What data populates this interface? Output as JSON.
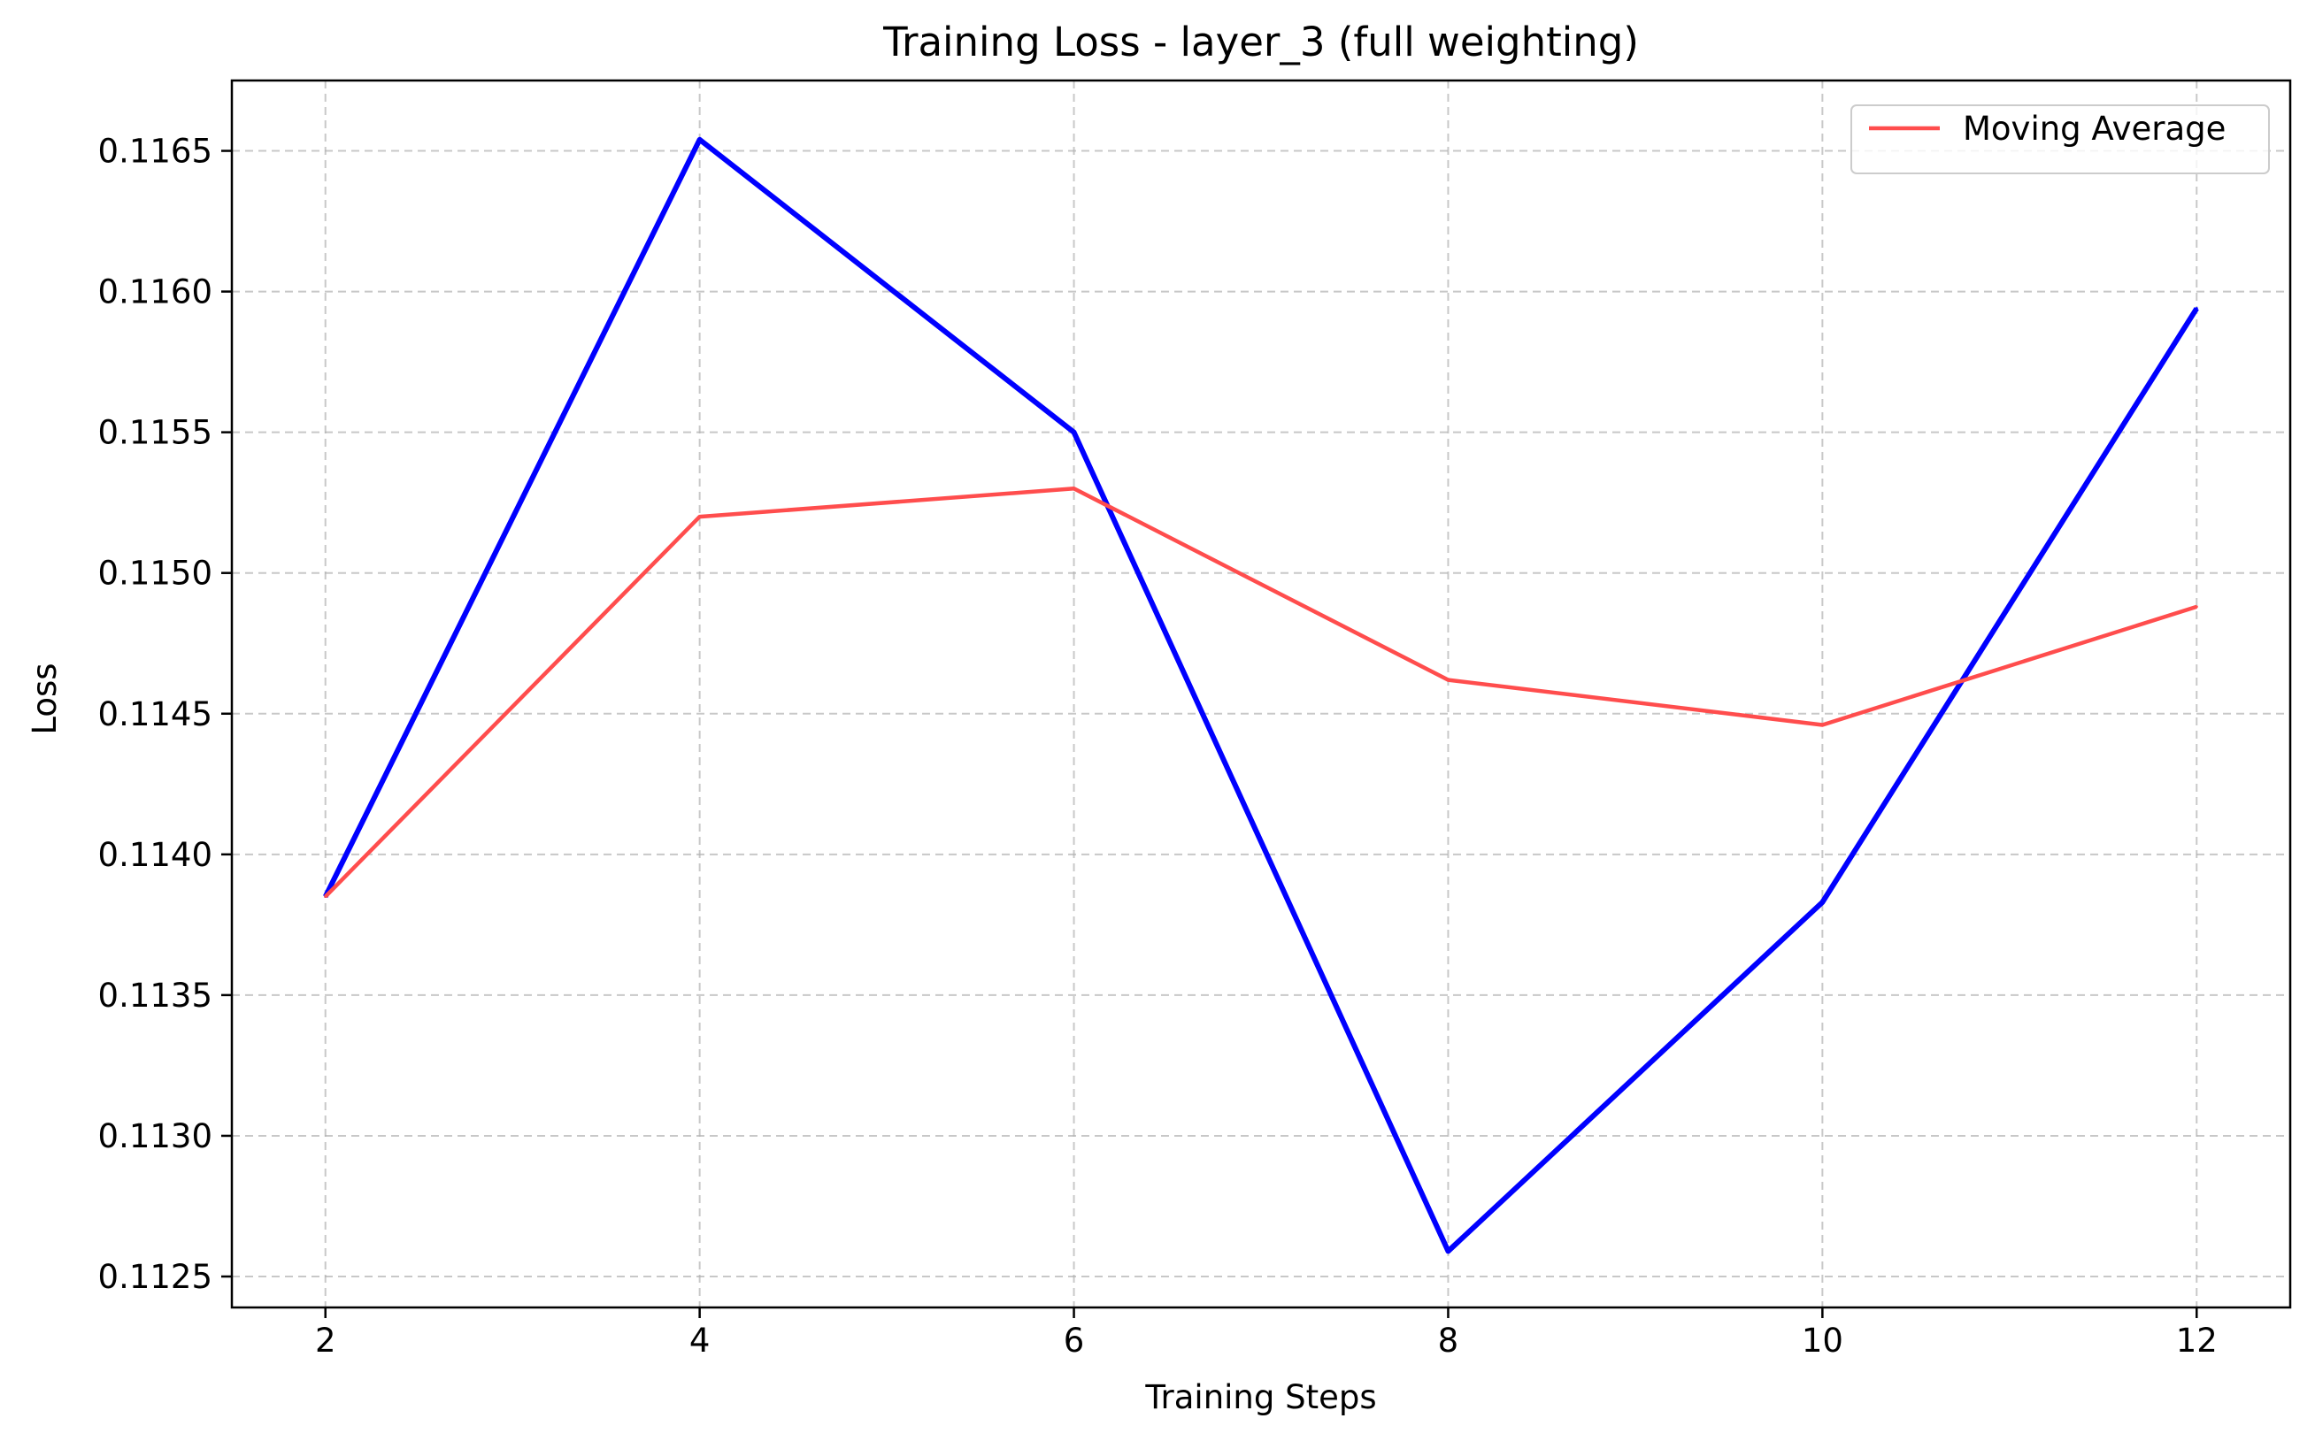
{
  "chart_data": {
    "type": "line",
    "title": "Training Loss - layer_3 (full weighting)",
    "xlabel": "Training Steps",
    "ylabel": "Loss",
    "x": [
      2,
      4,
      6,
      8,
      10,
      12
    ],
    "xlim": [
      1.5,
      12.5
    ],
    "ylim": [
      0.11239,
      0.11675
    ],
    "x_ticks": [
      2,
      4,
      6,
      8,
      10,
      12
    ],
    "x_tick_labels": [
      "2",
      "4",
      "6",
      "8",
      "10",
      "12"
    ],
    "y_ticks": [
      0.1125,
      0.113,
      0.1135,
      0.114,
      0.1145,
      0.115,
      0.1155,
      0.116,
      0.1165
    ],
    "y_tick_labels": [
      "0.1125",
      "0.1130",
      "0.1135",
      "0.1140",
      "0.1145",
      "0.1150",
      "0.1155",
      "0.1160",
      "0.1165"
    ],
    "grid": true,
    "legend_position": "top-right",
    "series": [
      {
        "values": [
          0.11385,
          0.11654,
          0.1155,
          0.11259,
          0.11383,
          0.11594
        ],
        "color": "#0000ff",
        "in_legend": false
      },
      {
        "name": "Moving Average",
        "values": [
          0.11385,
          0.1152,
          0.1153,
          0.11462,
          0.11446,
          0.11488
        ],
        "color": "#ff4d4d",
        "in_legend": true
      }
    ]
  }
}
